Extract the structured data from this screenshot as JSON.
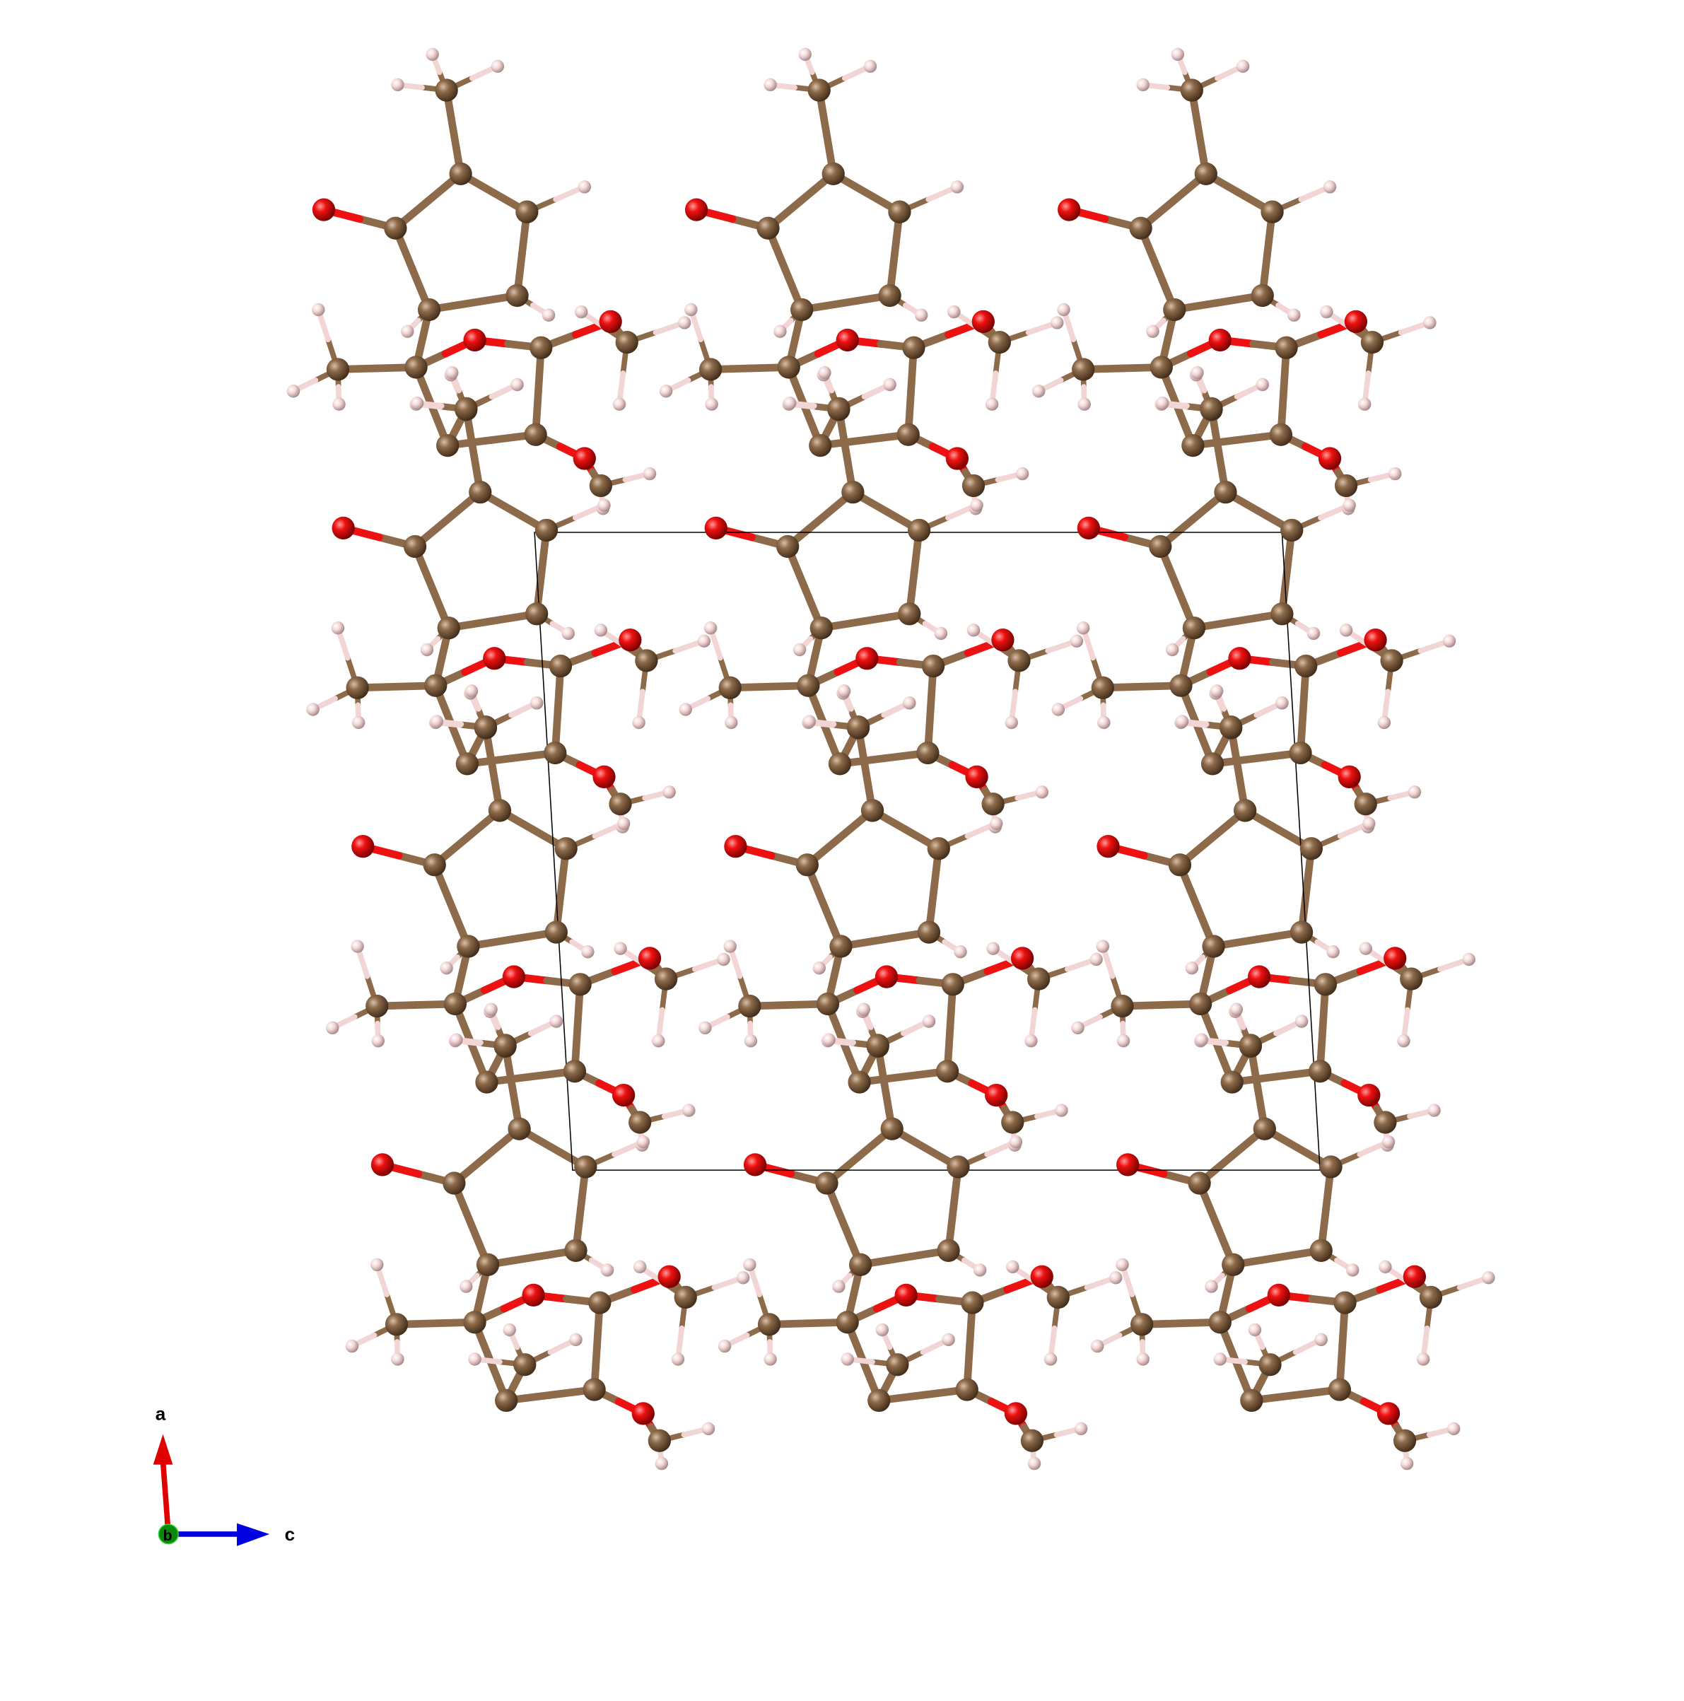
{
  "axes": {
    "a_label": "a",
    "b_label": "b",
    "c_label": "c",
    "a_color": "#e00000",
    "b_color": "#00a000",
    "c_color": "#0000e0"
  },
  "atom_colors": {
    "C": "#8c6a4a",
    "O": "#ee1111",
    "H": "#f2d6d6"
  },
  "bond_color": "#8c6a4a",
  "unit_cell_color": "#000000"
}
